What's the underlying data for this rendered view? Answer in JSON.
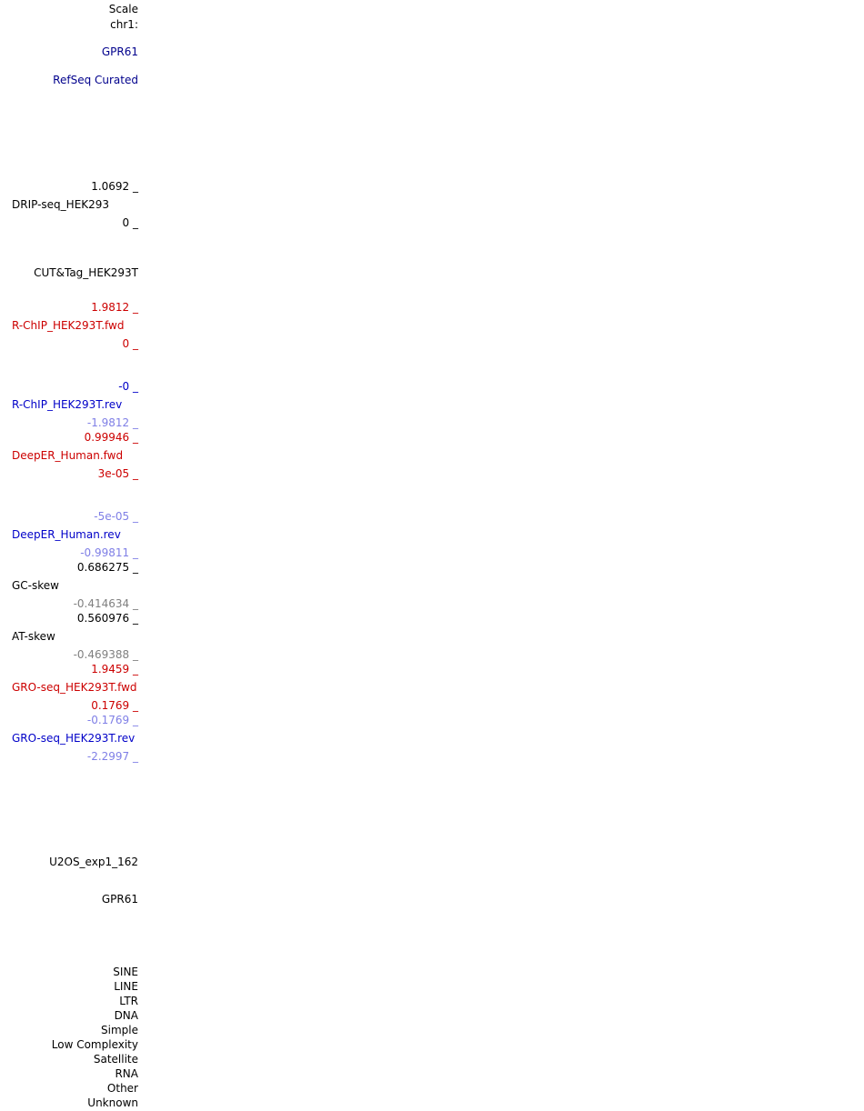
{
  "header": {
    "scale": "Scale",
    "chrom": "chr1:"
  },
  "tracks": {
    "gene_top": "GPR61",
    "refseq": "RefSeq Curated",
    "drip_max": "1.0692 _",
    "drip_name": "DRIP-seq_HEK293",
    "drip_min": "0 _",
    "cuttag": "CUT&Tag_HEK293T",
    "rchip_fwd_max": "1.9812 _",
    "rchip_fwd_name": "R-ChIP_HEK293T.fwd",
    "rchip_fwd_min": "0 _",
    "rchip_rev_max": "-0 _",
    "rchip_rev_name": "R-ChIP_HEK293T.rev",
    "rchip_rev_min": "-1.9812 _",
    "deeper_fwd_max": "0.99946 _",
    "deeper_fwd_name": "DeepER_Human.fwd",
    "deeper_fwd_min": "3e-05 _",
    "deeper_rev_max": "-5e-05 _",
    "deeper_rev_name": "DeepER_Human.rev",
    "deeper_rev_min": "-0.99811 _",
    "gc_max": "0.686275 _",
    "gc_name": "GC-skew",
    "gc_min": "-0.414634 _",
    "at_max": "0.560976 _",
    "at_name": "AT-skew",
    "at_min": "-0.469388 _",
    "gro_fwd_max": "1.9459 _",
    "gro_fwd_name": "GRO-seq_HEK293T.fwd",
    "gro_fwd_min": "0.1769 _",
    "gro_rev_max": "-0.1769 _",
    "gro_rev_name": "GRO-seq_HEK293T.rev",
    "gro_rev_min": "-2.2997 _",
    "u2os": "U2OS_exp1_162",
    "gene_bottom": "GPR61"
  },
  "repeat_classes": [
    "SINE",
    "LINE",
    "LTR",
    "DNA",
    "Simple",
    "Low Complexity",
    "Satellite",
    "RNA",
    "Other",
    "Unknown"
  ],
  "colors": {
    "text": "#000000",
    "navy": "#00008c",
    "blue": "#0000c8",
    "red": "#cc0000",
    "light_blue": "#7f7fe6",
    "gray": "#808080"
  }
}
